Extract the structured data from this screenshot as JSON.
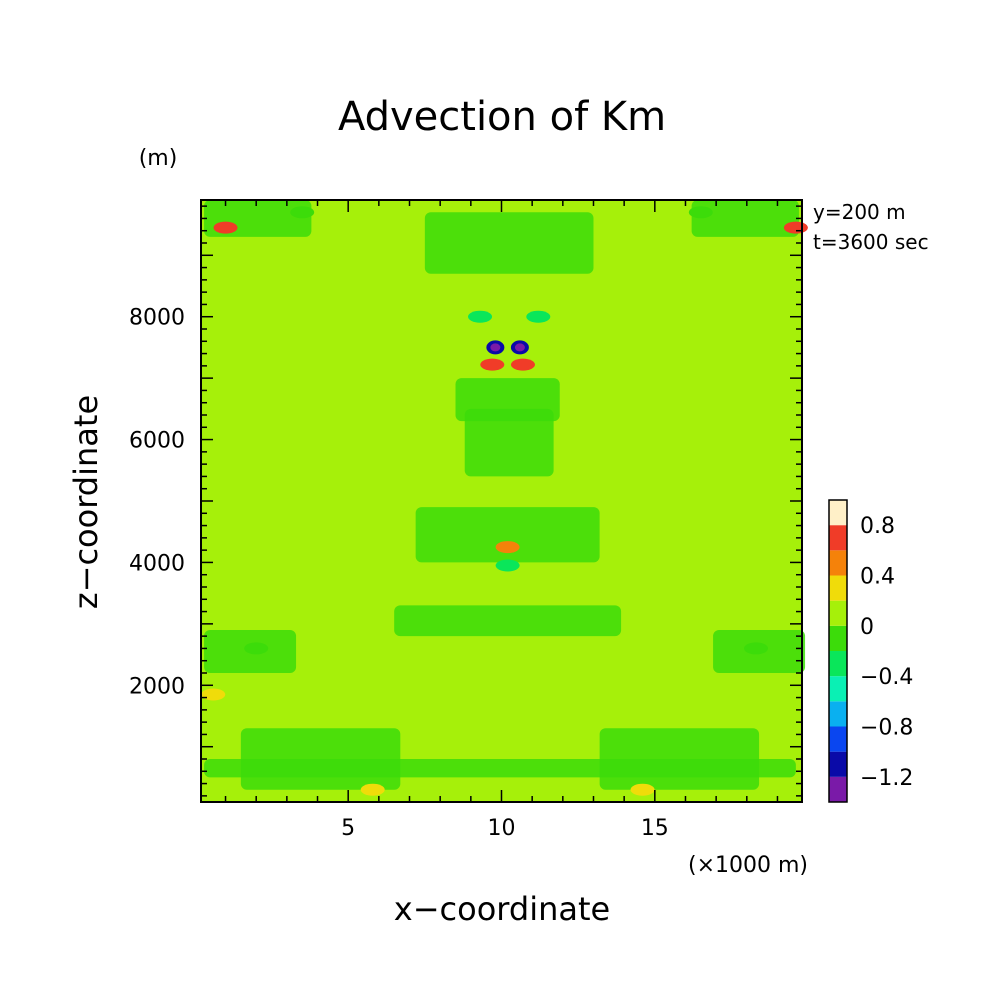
{
  "chart_data": {
    "type": "heatmap",
    "title": "Advection of Km",
    "xlabel": "x−coordinate",
    "ylabel": "z−coordinate",
    "y_unit": "(m)",
    "x_unit": "(×1000 m)",
    "annotations": [
      "y=200 m",
      "t=3600 sec"
    ],
    "xlim": [
      0.2,
      19.8
    ],
    "ylim": [
      100,
      9900
    ],
    "xticks": [
      {
        "value": 5,
        "label": "5"
      },
      {
        "value": 10,
        "label": "10"
      },
      {
        "value": 15,
        "label": "15"
      }
    ],
    "yticks": [
      {
        "value": 2000,
        "label": "2000"
      },
      {
        "value": 4000,
        "label": "4000"
      },
      {
        "value": 6000,
        "label": "6000"
      },
      {
        "value": 8000,
        "label": "8000"
      }
    ],
    "colorbar": {
      "levels": [
        -1.4,
        -1.2,
        -1.0,
        -0.8,
        -0.6,
        -0.4,
        -0.2,
        0,
        0.2,
        0.4,
        0.6,
        0.8,
        1.0
      ],
      "colors": [
        "#7a1aa8",
        "#0a0aa8",
        "#0a46f0",
        "#0ab0f0",
        "#0af0b4",
        "#0ae65a",
        "#3cdc0a",
        "#a6f00a",
        "#f0dc0a",
        "#f5820a",
        "#f03c28",
        "#fff0c8"
      ],
      "tick_labels": [
        {
          "value": 0.8,
          "label": "0.8"
        },
        {
          "value": 0.4,
          "label": "0.4"
        },
        {
          "value": 0,
          "label": "0"
        },
        {
          "value": -0.4,
          "label": "−0.4"
        },
        {
          "value": -0.8,
          "label": "−0.8"
        },
        {
          "value": -1.2,
          "label": "−1.2"
        }
      ]
    },
    "background_value": 0.1,
    "field_features": [
      {
        "x": 9.8,
        "z": 7500,
        "value": -1.1
      },
      {
        "x": 10.6,
        "z": 7500,
        "value": -1.1
      },
      {
        "x": 9.7,
        "z": 7220,
        "value": 0.7
      },
      {
        "x": 10.7,
        "z": 7220,
        "value": 0.7
      },
      {
        "x": 1.0,
        "z": 9450,
        "value": 0.6
      },
      {
        "x": 19.6,
        "z": 9450,
        "value": 0.6
      },
      {
        "x": 10.2,
        "z": 4250,
        "value": 0.5
      },
      {
        "x": 10.2,
        "z": 3950,
        "value": -0.4
      },
      {
        "x": 9.3,
        "z": 8000,
        "value": -0.4
      },
      {
        "x": 11.2,
        "z": 8000,
        "value": -0.4
      },
      {
        "x": 0.6,
        "z": 1850,
        "value": 0.3
      },
      {
        "x": 5.8,
        "z": 300,
        "value": 0.3
      },
      {
        "x": 14.6,
        "z": 300,
        "value": 0.3
      },
      {
        "x": 2.0,
        "z": 2600,
        "value": -0.1
      },
      {
        "x": 18.3,
        "z": 2600,
        "value": -0.1
      },
      {
        "x": 3.5,
        "z": 9700,
        "value": -0.1
      },
      {
        "x": 16.5,
        "z": 9700,
        "value": -0.1
      }
    ]
  }
}
